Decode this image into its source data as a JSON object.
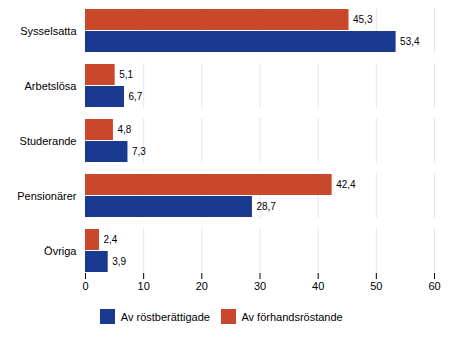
{
  "chart_data": {
    "type": "bar",
    "orientation": "horizontal",
    "categories": [
      "Sysselsatta",
      "Arbetslösa",
      "Studerande",
      "Pensionärer",
      "Övriga"
    ],
    "series": [
      {
        "name": "Av röstberättigade",
        "color": "#1a3a8f",
        "values": [
          53.4,
          6.7,
          7.3,
          28.7,
          3.9
        ],
        "value_labels": [
          "53,4",
          "6,7",
          "7,3",
          "28,7",
          "3,9"
        ]
      },
      {
        "name": "Av förhandsröstande",
        "color": "#c9472b",
        "values": [
          45.3,
          5.1,
          4.8,
          42.4,
          2.4
        ],
        "value_labels": [
          "45,3",
          "5,1",
          "4,8",
          "42,4",
          "2,4"
        ]
      }
    ],
    "xlim": [
      0,
      60
    ],
    "xticks": [
      0,
      10,
      20,
      30,
      40,
      50,
      60
    ],
    "grid": true,
    "data_labels": true,
    "legend": "bottom"
  }
}
